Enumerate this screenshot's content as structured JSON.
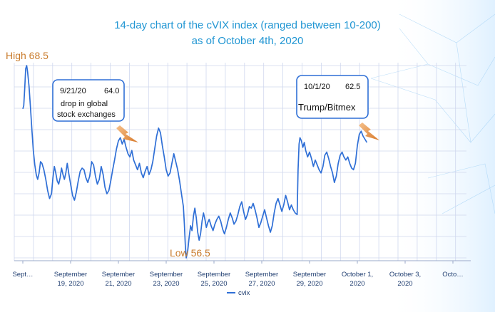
{
  "chart_data": {
    "type": "line",
    "title_line1": "14-day chart of the cVIX index (ranged between 10-200)",
    "title_line2": "as of October 4th, 2020",
    "x_ticks": [
      {
        "l1": "Sept…",
        "l2": ""
      },
      {
        "l1": "September",
        "l2": "19, 2020"
      },
      {
        "l1": "September",
        "l2": "21, 2020"
      },
      {
        "l1": "September",
        "l2": "23, 2020"
      },
      {
        "l1": "September",
        "l2": "25, 2020"
      },
      {
        "l1": "September",
        "l2": "27, 2020"
      },
      {
        "l1": "September",
        "l2": "29, 2020"
      },
      {
        "l1": "October 1,",
        "l2": "2020"
      },
      {
        "l1": "October 3,",
        "l2": "2020"
      },
      {
        "l1": "Octo…",
        "l2": ""
      }
    ],
    "ylim": [
      56.5,
      68.5
    ],
    "grid": true,
    "legend_position": "bottom",
    "series": [
      {
        "name": "cvix",
        "color": "#2f6fd6",
        "points": [
          [
            0.0,
            65.8
          ],
          [
            0.02,
            66.0
          ],
          [
            0.04,
            67.1
          ],
          [
            0.06,
            68.3
          ],
          [
            0.08,
            68.5
          ],
          [
            0.1,
            68.1
          ],
          [
            0.13,
            67.2
          ],
          [
            0.16,
            65.9
          ],
          [
            0.19,
            64.5
          ],
          [
            0.22,
            63.2
          ],
          [
            0.25,
            62.3
          ],
          [
            0.28,
            61.7
          ],
          [
            0.31,
            61.4
          ],
          [
            0.34,
            61.8
          ],
          [
            0.37,
            62.5
          ],
          [
            0.4,
            62.4
          ],
          [
            0.44,
            62.0
          ],
          [
            0.48,
            61.4
          ],
          [
            0.52,
            60.7
          ],
          [
            0.56,
            60.2
          ],
          [
            0.6,
            60.5
          ],
          [
            0.63,
            61.5
          ],
          [
            0.66,
            62.2
          ],
          [
            0.69,
            61.8
          ],
          [
            0.72,
            61.3
          ],
          [
            0.75,
            61.1
          ],
          [
            0.78,
            61.5
          ],
          [
            0.81,
            62.1
          ],
          [
            0.84,
            61.7
          ],
          [
            0.87,
            61.4
          ],
          [
            0.9,
            61.8
          ],
          [
            0.93,
            62.4
          ],
          [
            0.96,
            61.8
          ],
          [
            1.0,
            61.1
          ],
          [
            1.04,
            60.4
          ],
          [
            1.08,
            60.1
          ],
          [
            1.12,
            60.6
          ],
          [
            1.16,
            61.3
          ],
          [
            1.2,
            61.9
          ],
          [
            1.24,
            62.1
          ],
          [
            1.28,
            62.0
          ],
          [
            1.32,
            61.5
          ],
          [
            1.36,
            61.2
          ],
          [
            1.4,
            61.6
          ],
          [
            1.44,
            62.5
          ],
          [
            1.48,
            62.3
          ],
          [
            1.52,
            61.6
          ],
          [
            1.56,
            61.1
          ],
          [
            1.6,
            61.4
          ],
          [
            1.64,
            62.2
          ],
          [
            1.68,
            61.7
          ],
          [
            1.72,
            60.9
          ],
          [
            1.76,
            60.5
          ],
          [
            1.8,
            60.7
          ],
          [
            1.84,
            61.3
          ],
          [
            1.88,
            62.0
          ],
          [
            1.92,
            62.6
          ],
          [
            1.96,
            63.3
          ],
          [
            2.0,
            63.8
          ],
          [
            2.04,
            64.0
          ],
          [
            2.08,
            63.6
          ],
          [
            2.12,
            63.9
          ],
          [
            2.16,
            63.4
          ],
          [
            2.2,
            63.0
          ],
          [
            2.24,
            62.8
          ],
          [
            2.28,
            63.2
          ],
          [
            2.32,
            62.6
          ],
          [
            2.36,
            62.3
          ],
          [
            2.4,
            62.0
          ],
          [
            2.44,
            62.4
          ],
          [
            2.48,
            61.8
          ],
          [
            2.52,
            61.5
          ],
          [
            2.56,
            61.9
          ],
          [
            2.6,
            62.2
          ],
          [
            2.64,
            61.7
          ],
          [
            2.68,
            62.0
          ],
          [
            2.72,
            62.5
          ],
          [
            2.76,
            63.3
          ],
          [
            2.8,
            64.1
          ],
          [
            2.84,
            64.6
          ],
          [
            2.88,
            64.3
          ],
          [
            2.92,
            63.5
          ],
          [
            2.96,
            62.8
          ],
          [
            3.0,
            62.0
          ],
          [
            3.04,
            61.6
          ],
          [
            3.08,
            61.8
          ],
          [
            3.12,
            62.4
          ],
          [
            3.16,
            63.0
          ],
          [
            3.2,
            62.5
          ],
          [
            3.24,
            62.0
          ],
          [
            3.28,
            61.3
          ],
          [
            3.32,
            60.5
          ],
          [
            3.36,
            59.7
          ],
          [
            3.38,
            58.6
          ],
          [
            3.4,
            57.3
          ],
          [
            3.42,
            56.5
          ],
          [
            3.45,
            56.9
          ],
          [
            3.48,
            57.8
          ],
          [
            3.51,
            58.5
          ],
          [
            3.54,
            58.2
          ],
          [
            3.57,
            59.1
          ],
          [
            3.6,
            59.6
          ],
          [
            3.63,
            59.0
          ],
          [
            3.66,
            58.1
          ],
          [
            3.69,
            57.6
          ],
          [
            3.72,
            58.0
          ],
          [
            3.75,
            58.8
          ],
          [
            3.78,
            59.3
          ],
          [
            3.81,
            58.9
          ],
          [
            3.84,
            58.4
          ],
          [
            3.87,
            58.7
          ],
          [
            3.9,
            58.9
          ],
          [
            3.94,
            58.5
          ],
          [
            3.98,
            58.2
          ],
          [
            4.02,
            58.6
          ],
          [
            4.06,
            58.9
          ],
          [
            4.1,
            59.1
          ],
          [
            4.14,
            58.8
          ],
          [
            4.18,
            58.3
          ],
          [
            4.22,
            58.0
          ],
          [
            4.26,
            58.4
          ],
          [
            4.3,
            58.9
          ],
          [
            4.34,
            59.3
          ],
          [
            4.38,
            59.0
          ],
          [
            4.42,
            58.6
          ],
          [
            4.46,
            58.8
          ],
          [
            4.5,
            59.2
          ],
          [
            4.54,
            59.7
          ],
          [
            4.58,
            60.0
          ],
          [
            4.62,
            59.4
          ],
          [
            4.66,
            58.9
          ],
          [
            4.7,
            59.2
          ],
          [
            4.74,
            59.7
          ],
          [
            4.78,
            59.6
          ],
          [
            4.82,
            59.9
          ],
          [
            4.86,
            59.5
          ],
          [
            4.9,
            59.0
          ],
          [
            4.94,
            58.4
          ],
          [
            4.98,
            58.7
          ],
          [
            5.02,
            59.1
          ],
          [
            5.06,
            59.5
          ],
          [
            5.1,
            59.0
          ],
          [
            5.14,
            58.5
          ],
          [
            5.18,
            58.1
          ],
          [
            5.22,
            58.5
          ],
          [
            5.26,
            59.3
          ],
          [
            5.3,
            59.9
          ],
          [
            5.34,
            60.2
          ],
          [
            5.38,
            59.8
          ],
          [
            5.42,
            59.4
          ],
          [
            5.46,
            59.8
          ],
          [
            5.5,
            60.4
          ],
          [
            5.54,
            60.0
          ],
          [
            5.58,
            59.5
          ],
          [
            5.62,
            59.8
          ],
          [
            5.66,
            59.5
          ],
          [
            5.7,
            59.3
          ],
          [
            5.74,
            59.2
          ],
          [
            5.76,
            62.0
          ],
          [
            5.78,
            63.6
          ],
          [
            5.8,
            64.0
          ],
          [
            5.83,
            63.8
          ],
          [
            5.86,
            63.4
          ],
          [
            5.89,
            63.7
          ],
          [
            5.92,
            63.2
          ],
          [
            5.96,
            62.8
          ],
          [
            6.0,
            63.1
          ],
          [
            6.04,
            62.7
          ],
          [
            6.08,
            62.2
          ],
          [
            6.12,
            62.6
          ],
          [
            6.16,
            62.3
          ],
          [
            6.2,
            62.0
          ],
          [
            6.24,
            61.8
          ],
          [
            6.28,
            62.2
          ],
          [
            6.32,
            62.9
          ],
          [
            6.36,
            63.1
          ],
          [
            6.4,
            62.7
          ],
          [
            6.44,
            62.2
          ],
          [
            6.48,
            61.8
          ],
          [
            6.52,
            61.2
          ],
          [
            6.56,
            61.6
          ],
          [
            6.6,
            62.4
          ],
          [
            6.64,
            62.9
          ],
          [
            6.68,
            63.1
          ],
          [
            6.72,
            62.8
          ],
          [
            6.76,
            62.6
          ],
          [
            6.8,
            62.8
          ],
          [
            6.84,
            62.4
          ],
          [
            6.88,
            62.1
          ],
          [
            6.92,
            62.0
          ],
          [
            6.96,
            62.4
          ],
          [
            7.0,
            63.5
          ],
          [
            7.04,
            64.2
          ],
          [
            7.08,
            64.4
          ],
          [
            7.12,
            64.1
          ],
          [
            7.16,
            63.9
          ],
          [
            7.2,
            63.7
          ]
        ]
      }
    ],
    "annotations": [
      {
        "date": "9/21/20",
        "value": "64.0",
        "text_l1": "drop in global",
        "text_l2": "stock exchanges"
      },
      {
        "date": "10/1/20",
        "value": "62.5",
        "text": "Trump/Bitmex"
      }
    ],
    "high_label": "High 68.5",
    "low_label": "Low 56.5",
    "colors": {
      "line": "#2f6fd6",
      "title": "#2196d3",
      "highlow": "#c97b2c",
      "grid": "#cfd7ee"
    }
  }
}
